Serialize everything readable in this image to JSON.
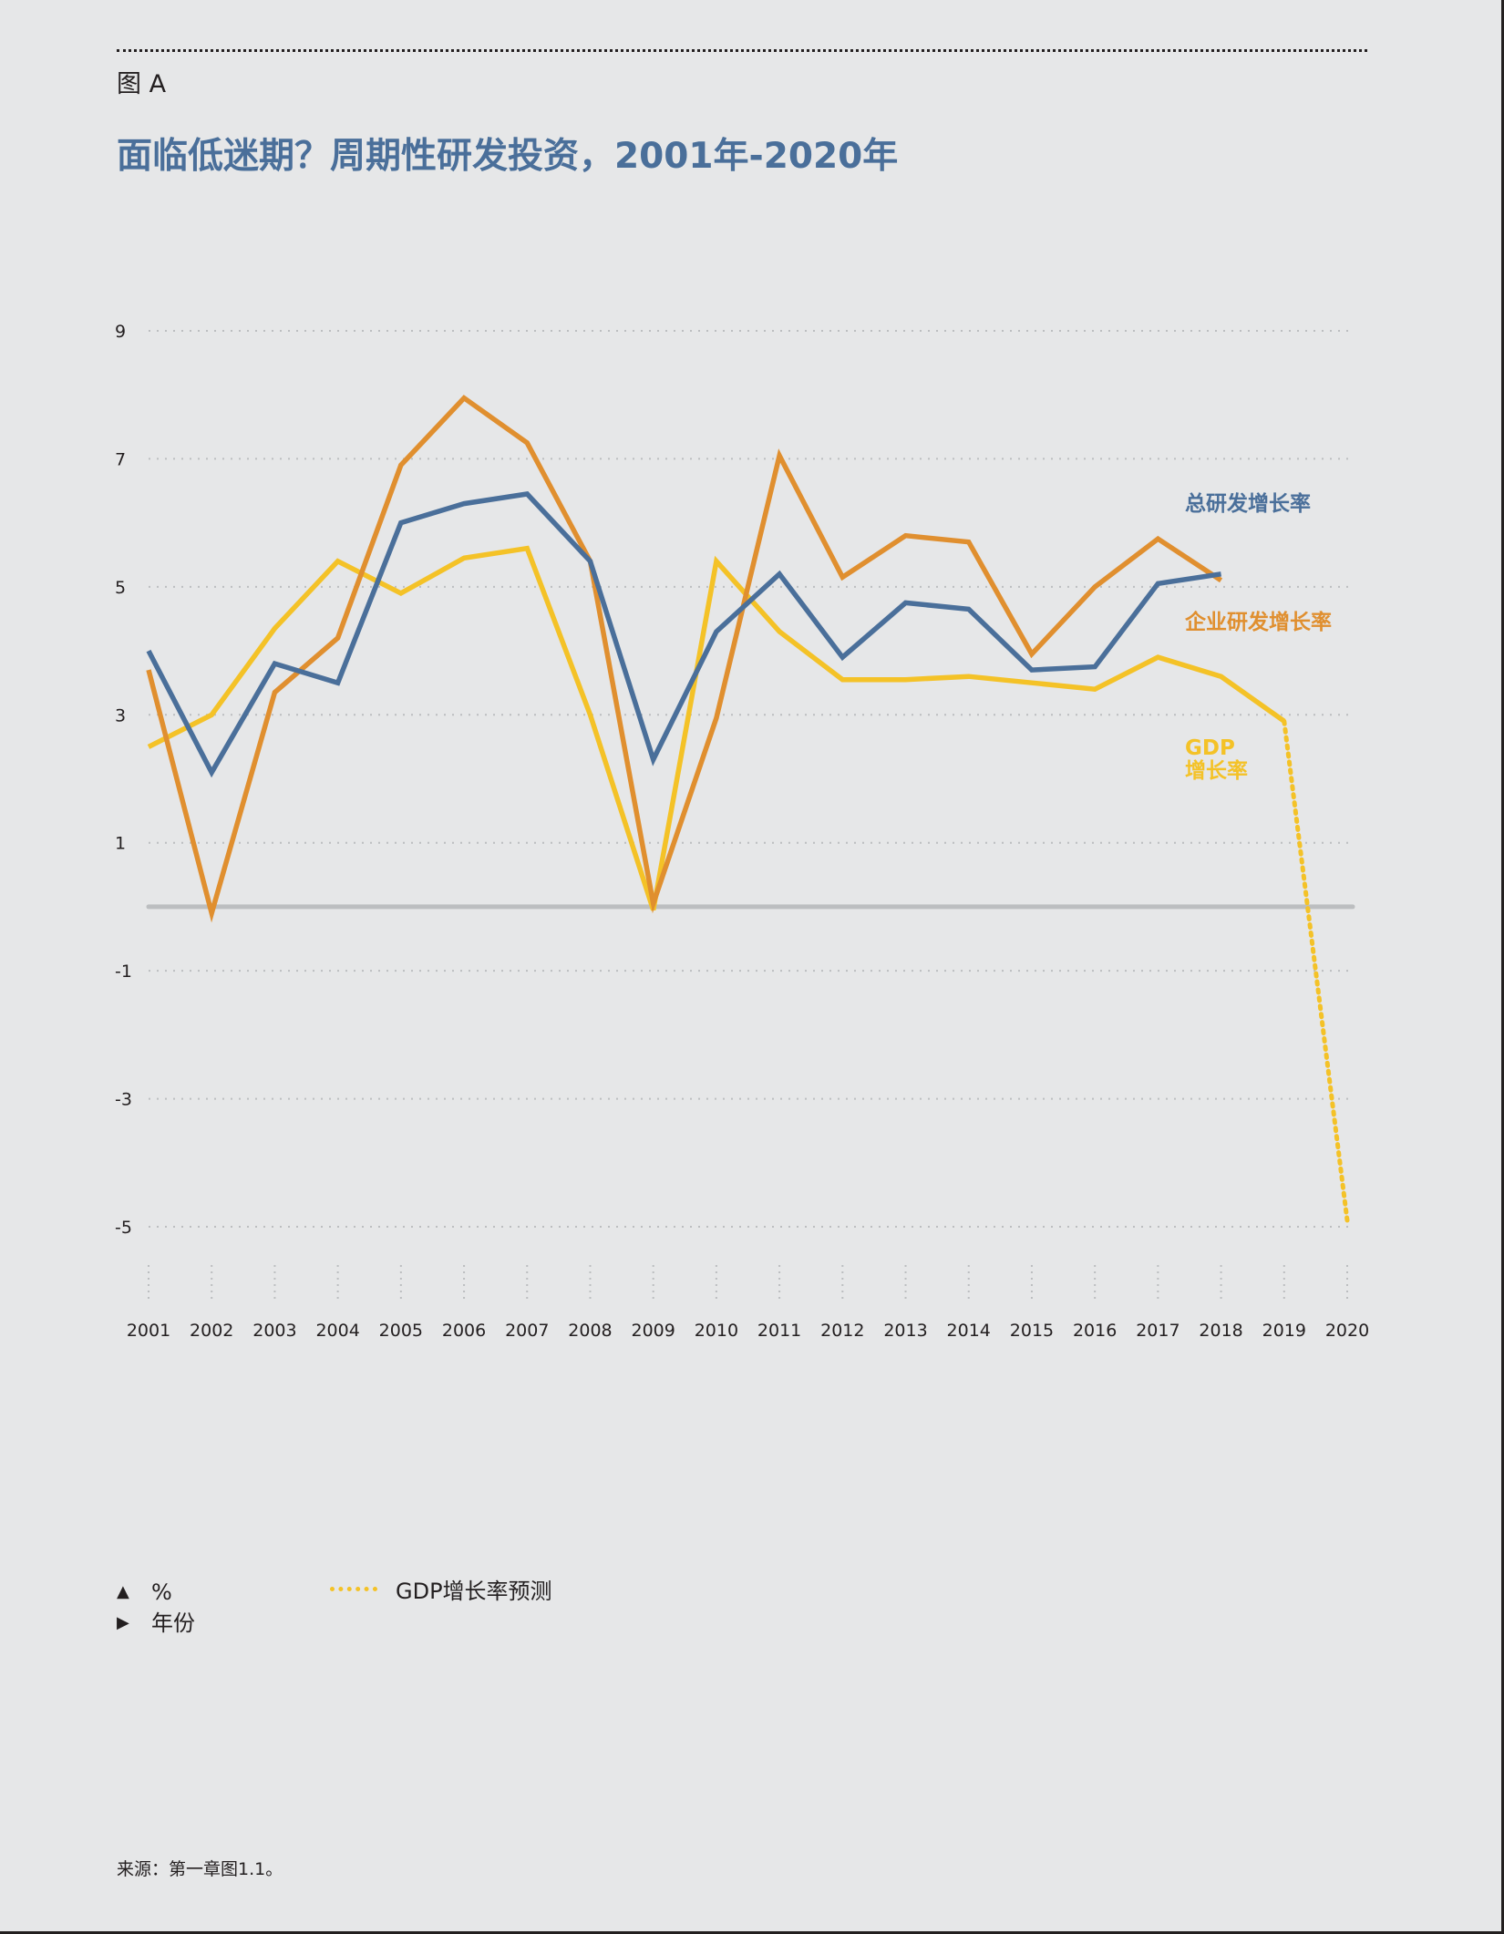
{
  "figure_label": "图 A",
  "title": "面临低迷期？周期性研发投资，2001年-2020年",
  "legend": {
    "y_axis_marker": "▲",
    "y_axis_label": "%",
    "x_axis_marker": "▶",
    "x_axis_label": "年份",
    "forecast_label": "GDP增长率预测"
  },
  "source": "来源：第一章图1.1。",
  "colors": {
    "total_rd": "#4a6f9a",
    "business_rd": "#e08f2f",
    "gdp": "#f4c227",
    "zero_line": "#bcbec0",
    "grid": "#bcbec0"
  },
  "chart_data": {
    "type": "line",
    "x": [
      "2001",
      "2002",
      "2003",
      "2004",
      "2005",
      "2006",
      "2007",
      "2008",
      "2009",
      "2010",
      "2011",
      "2012",
      "2013",
      "2014",
      "2015",
      "2016",
      "2017",
      "2018",
      "2019",
      "2020"
    ],
    "y_ticks": [
      "9",
      "7",
      "5",
      "3",
      "1",
      "-1",
      "-3",
      "-5"
    ],
    "ylim": [
      -6,
      9
    ],
    "grid": true,
    "series": [
      {
        "name": "总研发增长率",
        "label_lines": [
          "总研发增长率"
        ],
        "color_key": "total_rd",
        "values": [
          4.0,
          2.1,
          3.8,
          3.5,
          6.0,
          6.3,
          6.45,
          5.4,
          2.3,
          4.3,
          5.2,
          3.9,
          4.75,
          4.65,
          3.7,
          3.75,
          5.05,
          5.2,
          null,
          null
        ]
      },
      {
        "name": "企业研发增长率",
        "label_lines": [
          "企业研发增长率"
        ],
        "color_key": "business_rd",
        "values": [
          3.7,
          -0.1,
          3.35,
          4.2,
          6.9,
          7.95,
          7.25,
          5.4,
          0.05,
          2.95,
          7.05,
          5.15,
          5.8,
          5.7,
          3.95,
          5.0,
          5.75,
          5.1,
          null,
          null
        ]
      },
      {
        "name": "GDP增长率",
        "label_lines": [
          "GDP",
          "增长率"
        ],
        "color_key": "gdp",
        "values": [
          2.5,
          3.0,
          4.35,
          5.4,
          4.9,
          5.45,
          5.6,
          3.0,
          -0.05,
          5.4,
          4.3,
          3.55,
          3.55,
          3.6,
          3.5,
          3.4,
          3.9,
          3.6,
          2.9,
          null
        ]
      }
    ],
    "forecast": {
      "name": "GDP增长率预测",
      "color_key": "gdp",
      "x": [
        "2019",
        "2020"
      ],
      "values": [
        2.9,
        -4.9
      ]
    }
  }
}
